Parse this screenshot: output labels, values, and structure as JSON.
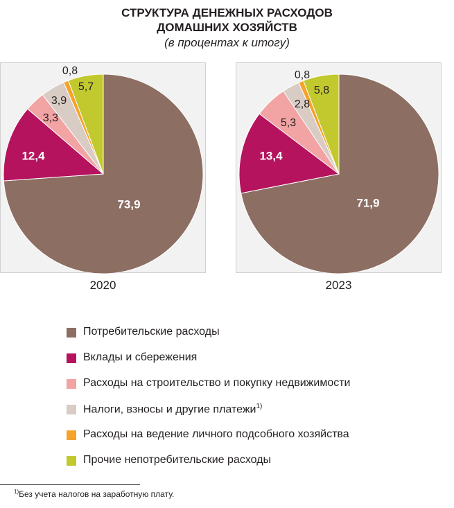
{
  "chart_data": {
    "type": "pie",
    "title": "СТРУКТУРА ДЕНЕЖНЫХ РАСХОДОВ ДОМАШНИХ ХОЗЯЙСТВ",
    "title_line1": "СТРУКТУРА ДЕНЕЖНЫХ РАСХОДОВ",
    "title_line2": "ДОМАШНИХ ХОЗЯЙСТВ",
    "subtitle": "(в процентах к итогу)",
    "categories": [
      "Потребительские расходы",
      "Вклады и сбережения",
      "Расходы на строительство и покупку недвижимости",
      "Налоги, взносы и другие платежи",
      "Расходы на ведение личного подсобного хозяйства",
      "Прочие непотребительские расходы"
    ],
    "colors": [
      "#8d6e63",
      "#b5135d",
      "#f2a3a3",
      "#d8ccc5",
      "#f5a32b",
      "#c2c92f"
    ],
    "label_colors": [
      "#ffffff",
      "#ffffff",
      "#231f20",
      "#231f20",
      "#231f20",
      "#231f20"
    ],
    "series": [
      {
        "name": "2020",
        "values": [
          73.9,
          12.4,
          3.3,
          3.9,
          0.8,
          5.7
        ],
        "labels": [
          "73,9",
          "12,4",
          "3,3",
          "3,9",
          "0,8",
          "5,7"
        ]
      },
      {
        "name": "2023",
        "values": [
          71.9,
          13.4,
          5.3,
          2.8,
          0.8,
          5.8
        ],
        "labels": [
          "71,9",
          "13,4",
          "5,3",
          "2,8",
          "0,8",
          "5,8"
        ]
      }
    ],
    "legend_position": "bottom",
    "legend_footnote_marker": "1)"
  },
  "footnote": {
    "marker": "1)",
    "text": "Без учета налогов на заработную плату."
  }
}
